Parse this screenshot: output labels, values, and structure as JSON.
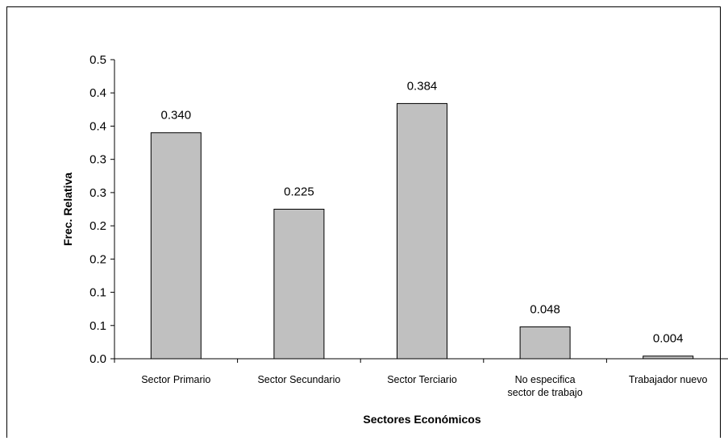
{
  "chart_data": {
    "type": "bar",
    "title": "",
    "xlabel": "Sectores Económicos",
    "ylabel": "Frec. Relativa",
    "categories": [
      [
        "Sector Primario"
      ],
      [
        "Sector Secundario"
      ],
      [
        "Sector Terciario"
      ],
      [
        "No especifica",
        "sector de trabajo"
      ],
      [
        "Trabajador nuevo"
      ]
    ],
    "values": [
      0.34,
      0.225,
      0.384,
      0.048,
      0.004
    ],
    "data_labels": [
      "0.340",
      "0.225",
      "0.384",
      "0.048",
      "0.004"
    ],
    "ylim": [
      0,
      0.45
    ],
    "y_tick_values": [
      0,
      0.05,
      0.1,
      0.15,
      0.2,
      0.25,
      0.3,
      0.35,
      0.4,
      0.45
    ],
    "y_tick_labels": [
      "0.0",
      "0.1",
      "0.1",
      "0.2",
      "0.2",
      "0.3",
      "0.3",
      "0.4",
      "0.4",
      "0.5"
    ],
    "grid": false,
    "legend": "none",
    "bar_color": "#c0c0c0",
    "bar_edge_color": "#000000"
  }
}
